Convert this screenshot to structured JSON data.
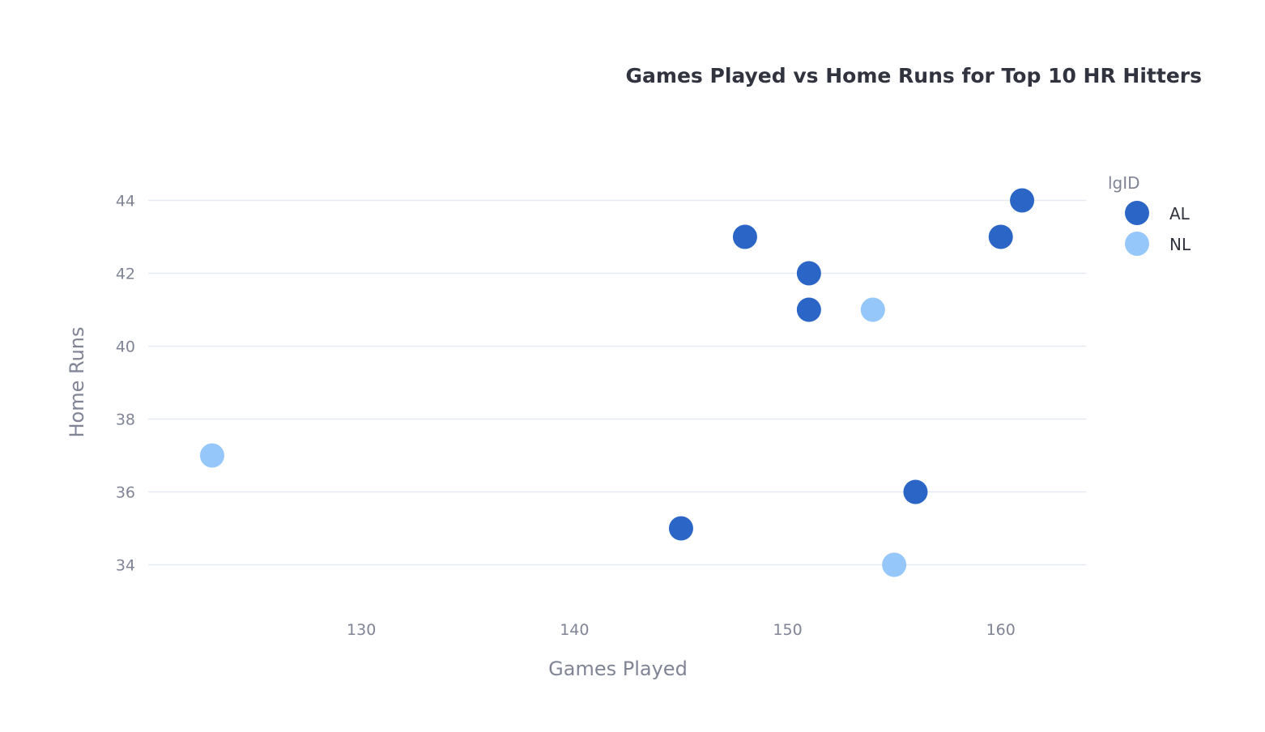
{
  "chart_data": {
    "type": "scatter",
    "title": "Games Played vs Home Runs for Top 10 HR Hitters",
    "xlabel": "Games Played",
    "ylabel": "Home Runs",
    "xlim": [
      120,
      164
    ],
    "ylim": [
      32.5,
      45.5
    ],
    "x_ticks": [
      130,
      140,
      150,
      160
    ],
    "y_ticks": [
      34,
      36,
      38,
      40,
      42,
      44
    ],
    "grid": "horizontal",
    "legend": {
      "title": "lgID",
      "position": "top-right"
    },
    "series": [
      {
        "name": "AL",
        "color": "#2b66c6",
        "points": [
          {
            "x": 161,
            "y": 44
          },
          {
            "x": 160,
            "y": 43
          },
          {
            "x": 148,
            "y": 43
          },
          {
            "x": 151,
            "y": 42
          },
          {
            "x": 151,
            "y": 41
          },
          {
            "x": 156,
            "y": 36
          },
          {
            "x": 145,
            "y": 35
          }
        ]
      },
      {
        "name": "NL",
        "color": "#95c7fa",
        "points": [
          {
            "x": 154,
            "y": 41
          },
          {
            "x": 123,
            "y": 37
          },
          {
            "x": 155,
            "y": 34
          }
        ]
      }
    ]
  }
}
